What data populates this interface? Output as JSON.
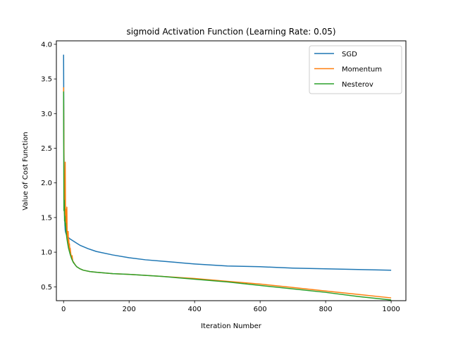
{
  "chart_data": {
    "type": "line",
    "title": "sigmoid Activation Function (Learning Rate: 0.05)",
    "xlabel": "Iteration Number",
    "ylabel": "Value of Cost Function",
    "xlim": [
      -22,
      1045
    ],
    "ylim": [
      0.3,
      4.05
    ],
    "xticks": [
      0,
      200,
      400,
      600,
      800,
      1000
    ],
    "yticks": [
      0.5,
      1.0,
      1.5,
      2.0,
      2.5,
      3.0,
      3.5,
      4.0
    ],
    "xtick_labels": [
      "0",
      "200",
      "400",
      "600",
      "800",
      "1000"
    ],
    "ytick_labels": [
      "0.5",
      "1.0",
      "1.5",
      "2.0",
      "2.5",
      "3.0",
      "3.5",
      "4.0"
    ],
    "grid": false,
    "legend_position": "top-right",
    "series": [
      {
        "name": "SGD",
        "color": "#1f77b4",
        "x": [
          0,
          1,
          2,
          3,
          4,
          5,
          6,
          8,
          10,
          15,
          20,
          30,
          40,
          50,
          75,
          100,
          150,
          200,
          250,
          300,
          400,
          500,
          600,
          700,
          800,
          900,
          1000
        ],
        "y": [
          3.85,
          2.6,
          1.95,
          1.55,
          1.4,
          1.32,
          1.29,
          1.26,
          1.24,
          1.21,
          1.19,
          1.16,
          1.13,
          1.1,
          1.05,
          1.01,
          0.96,
          0.92,
          0.89,
          0.87,
          0.83,
          0.8,
          0.79,
          0.77,
          0.76,
          0.75,
          0.74
        ]
      },
      {
        "name": "Momentum",
        "color": "#ff7f0e",
        "x": [
          0,
          1,
          2,
          3,
          4,
          5,
          6,
          7,
          8,
          9,
          10,
          11,
          12,
          13,
          14,
          15,
          16,
          17,
          18,
          19,
          20,
          22,
          24,
          26,
          28,
          30,
          35,
          40,
          50,
          60,
          80,
          100,
          150,
          200,
          300,
          400,
          500,
          600,
          700,
          800,
          900,
          1000
        ],
        "y": [
          3.38,
          2.5,
          1.62,
          1.55,
          1.7,
          2.3,
          1.45,
          1.4,
          1.62,
          1.3,
          1.65,
          1.22,
          1.28,
          1.15,
          1.3,
          1.1,
          1.18,
          1.05,
          1.12,
          1.0,
          1.06,
          0.98,
          0.92,
          0.95,
          0.87,
          0.86,
          0.82,
          0.79,
          0.76,
          0.74,
          0.72,
          0.71,
          0.69,
          0.68,
          0.65,
          0.62,
          0.58,
          0.54,
          0.49,
          0.44,
          0.39,
          0.34
        ]
      },
      {
        "name": "Nesterov",
        "color": "#2ca02c",
        "x": [
          0,
          1,
          2,
          3,
          4,
          5,
          6,
          7,
          8,
          10,
          12,
          15,
          20,
          25,
          30,
          40,
          50,
          60,
          80,
          100,
          150,
          200,
          300,
          400,
          500,
          600,
          700,
          800,
          900,
          1000
        ],
        "y": [
          3.32,
          1.6,
          1.75,
          1.45,
          1.52,
          1.38,
          1.42,
          1.33,
          1.28,
          1.2,
          1.14,
          1.06,
          0.97,
          0.9,
          0.85,
          0.79,
          0.76,
          0.74,
          0.72,
          0.71,
          0.69,
          0.68,
          0.65,
          0.61,
          0.57,
          0.52,
          0.47,
          0.42,
          0.36,
          0.31
        ]
      }
    ]
  }
}
